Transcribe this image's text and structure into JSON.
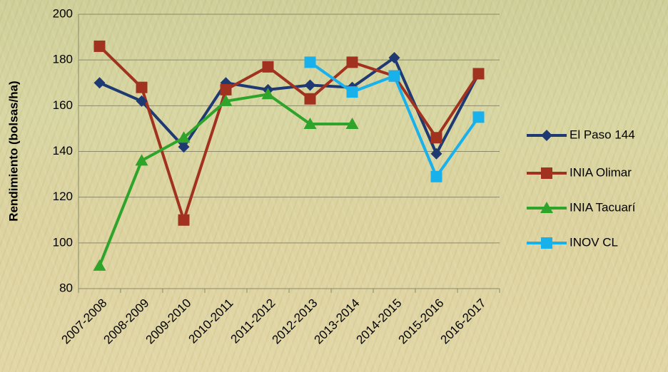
{
  "chart_data": {
    "type": "line",
    "y_label": "Rendimiento (bolsas/ha)",
    "categories": [
      "2007-2008",
      "2008-2009",
      "2009-2010",
      "2010-2011",
      "2011-2012",
      "2012-2013",
      "2013-2014",
      "2014-2015",
      "2015-2016",
      "2016-2017"
    ],
    "series": [
      {
        "name": "El Paso 144",
        "color": "#1f3a73",
        "marker": "diamond",
        "values": [
          170,
          162,
          142,
          170,
          167,
          169,
          168,
          181,
          139,
          174
        ]
      },
      {
        "name": "INIA Olimar",
        "color": "#a1321f",
        "marker": "square",
        "values": [
          186,
          168,
          110,
          167,
          177,
          163,
          179,
          173,
          146,
          174
        ]
      },
      {
        "name": "INIA Tacuarí",
        "color": "#2ea42a",
        "marker": "triangle",
        "values": [
          90,
          136,
          146,
          162,
          165,
          152,
          152,
          null,
          null,
          null
        ]
      },
      {
        "name": "INOV CL",
        "color": "#19b1ec",
        "marker": "square",
        "values": [
          null,
          null,
          null,
          null,
          null,
          179,
          166,
          173,
          129,
          155
        ]
      }
    ],
    "ylim": [
      80,
      200
    ],
    "yticks": [
      80,
      100,
      120,
      140,
      160,
      180,
      200
    ],
    "grid": true,
    "legend": "right"
  }
}
